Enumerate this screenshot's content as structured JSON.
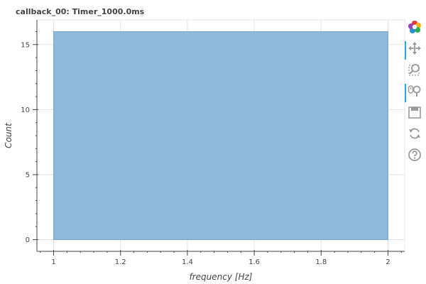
{
  "chart_data": {
    "type": "bar",
    "title": "callback_00: Timer_1000.0ms",
    "xlabel": "frequency [Hz]",
    "ylabel": "Count",
    "xlim": [
      0.95,
      2.05
    ],
    "ylim": [
      -0.9,
      16.9
    ],
    "grid": true,
    "bars": [
      {
        "x0": 1.0,
        "x1": 2.0,
        "value": 16
      }
    ],
    "x_ticks": [
      {
        "value": 1,
        "label": "1"
      },
      {
        "value": 1.2,
        "label": "1.2"
      },
      {
        "value": 1.4,
        "label": "1.4"
      },
      {
        "value": 1.6,
        "label": "1.6"
      },
      {
        "value": 1.8,
        "label": "1.8"
      },
      {
        "value": 2,
        "label": "2"
      }
    ],
    "y_ticks": [
      {
        "value": 0,
        "label": "0"
      },
      {
        "value": 5,
        "label": "5"
      },
      {
        "value": 10,
        "label": "10"
      },
      {
        "value": 15,
        "label": "15"
      }
    ],
    "colors": {
      "bar_fill": "#8fb9d9",
      "bar_stroke": "#7aa8cc",
      "grid": "#e5e5e5",
      "axis": "#444444"
    }
  },
  "toolbar": {
    "tools": [
      {
        "name": "bokeh-logo-icon",
        "active": false
      },
      {
        "name": "pan-icon",
        "active": true
      },
      {
        "name": "box-zoom-icon",
        "active": false
      },
      {
        "name": "wheel-zoom-icon",
        "active": true
      },
      {
        "name": "save-icon",
        "active": false
      },
      {
        "name": "reset-icon",
        "active": false
      },
      {
        "name": "help-icon",
        "active": false
      }
    ]
  }
}
